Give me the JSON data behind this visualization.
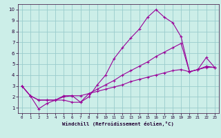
{
  "xlabel": "Windchill (Refroidissement éolien,°C)",
  "bg_color": "#cceee8",
  "grid_color": "#99cccc",
  "line_color": "#990099",
  "xlim": [
    -0.5,
    23.5
  ],
  "ylim": [
    0.5,
    10.5
  ],
  "xticks": [
    0,
    1,
    2,
    3,
    4,
    5,
    6,
    7,
    8,
    9,
    10,
    11,
    12,
    13,
    14,
    15,
    16,
    17,
    18,
    19,
    20,
    21,
    22,
    23
  ],
  "yticks": [
    1,
    2,
    3,
    4,
    5,
    6,
    7,
    8,
    9,
    10
  ],
  "line1_x": [
    0,
    1,
    2,
    3,
    4,
    5,
    6,
    7,
    8,
    9,
    10,
    11,
    12,
    13,
    14,
    15,
    16,
    17,
    18,
    19,
    20,
    21,
    22,
    23
  ],
  "line1_y": [
    3.0,
    2.1,
    0.9,
    1.4,
    1.7,
    1.7,
    1.5,
    1.5,
    2.0,
    3.1,
    4.0,
    5.5,
    6.5,
    7.4,
    8.2,
    9.3,
    10.0,
    9.3,
    8.8,
    7.5,
    4.3,
    4.5,
    5.6,
    4.7
  ],
  "line2_x": [
    0,
    1,
    2,
    3,
    4,
    5,
    6,
    7,
    8,
    9,
    10,
    11,
    12,
    13,
    14,
    15,
    16,
    17,
    18,
    19,
    20,
    21,
    22,
    23
  ],
  "line2_y": [
    3.0,
    2.1,
    1.7,
    1.7,
    1.7,
    2.1,
    2.1,
    1.5,
    2.3,
    2.7,
    3.1,
    3.5,
    4.0,
    4.4,
    4.8,
    5.2,
    5.7,
    6.1,
    6.5,
    6.9,
    4.3,
    4.5,
    4.7,
    4.7
  ],
  "line3_x": [
    0,
    1,
    2,
    3,
    4,
    5,
    6,
    7,
    8,
    9,
    10,
    11,
    12,
    13,
    14,
    15,
    16,
    17,
    18,
    19,
    20,
    21,
    22,
    23
  ],
  "line3_y": [
    3.0,
    2.1,
    1.7,
    1.7,
    1.7,
    2.0,
    2.1,
    2.1,
    2.3,
    2.5,
    2.7,
    2.9,
    3.1,
    3.4,
    3.6,
    3.8,
    4.0,
    4.2,
    4.4,
    4.5,
    4.3,
    4.5,
    4.8,
    4.7
  ]
}
